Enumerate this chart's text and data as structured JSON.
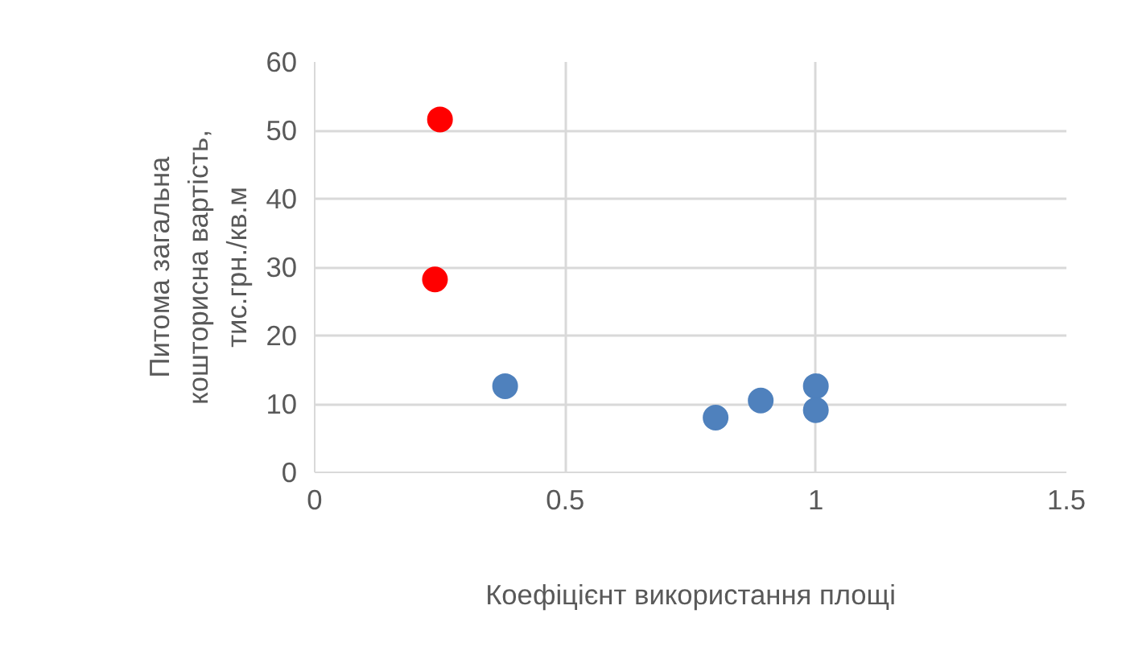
{
  "chart_data": {
    "type": "scatter",
    "xlabel": "Коефіцієнт використання площі",
    "ylabel": "Питома загальна\nкошторисна вартість,\nтис.грн./кв.м",
    "series": [
      {
        "color": "#ff0000",
        "x": [
          0.25,
          0.24
        ],
        "values": [
          51.6,
          28.2
        ]
      },
      {
        "color": "#4f81bd",
        "x": [
          0.38,
          0.8,
          0.89,
          1.0,
          1.0
        ],
        "values": [
          12.6,
          8.0,
          10.5,
          12.6,
          9.1
        ]
      }
    ],
    "xlim": [
      0,
      1.5
    ],
    "xticks": [
      0,
      0.5,
      1,
      1.5
    ],
    "ylim": [
      0,
      60
    ],
    "yticks": [
      0,
      10,
      20,
      30,
      40,
      50,
      60
    ],
    "grid": true,
    "marker": "circle"
  }
}
